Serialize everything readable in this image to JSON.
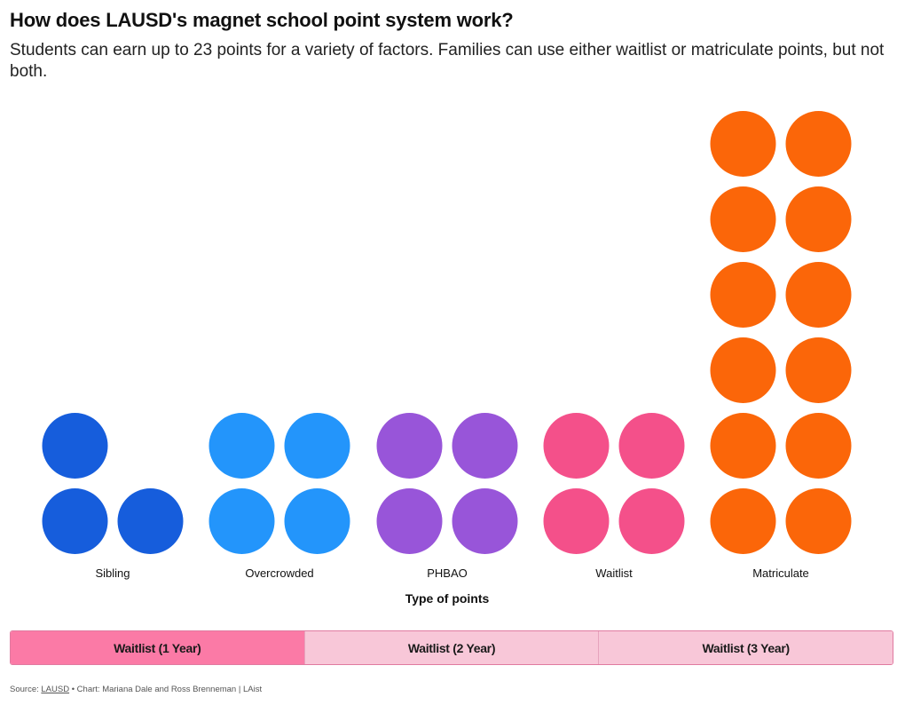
{
  "title": "How does LAUSD's magnet school point system work?",
  "subtitle": "Students can earn up to 23 points for a variety of factors. Families can use either waitlist or matriculate points, but not both.",
  "chart_data": {
    "type": "dot-matrix",
    "xlabel": "Type of points",
    "unit": "points",
    "categories": [
      "Sibling",
      "Overcrowded",
      "PHBAO",
      "Waitlist",
      "Matriculate"
    ],
    "values": [
      3,
      4,
      4,
      4,
      12
    ],
    "colors": [
      "#165ddc",
      "#2395fb",
      "#9855d9",
      "#f4508a",
      "#fb6609"
    ]
  },
  "toggle": {
    "options": [
      "Waitlist (1 Year)",
      "Waitlist (2 Year)",
      "Waitlist (3 Year)"
    ],
    "selected": "Waitlist (1 Year)"
  },
  "footer": {
    "source_prefix": "Source: ",
    "source_link": "LAUSD",
    "credit": " • Chart: Mariana Dale and Ross Brenneman | LAist"
  }
}
